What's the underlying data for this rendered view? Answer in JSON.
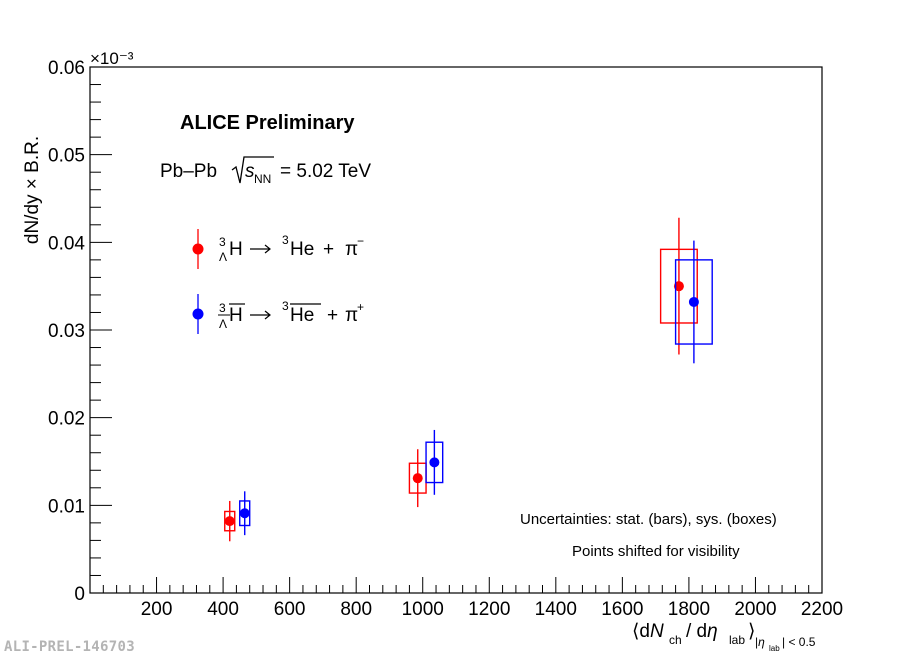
{
  "chart_data": {
    "type": "scatter",
    "title": "ALICE Preliminary",
    "subtitle": {
      "system": "Pb–Pb",
      "sqrt_label": "s",
      "sqrt_subscript": "NN",
      "energy": "= 5.02 TeV"
    },
    "xlabel": "⟨dN_ch / dη_lab⟩_|η_lab| < 0.5",
    "ylabel": "dN/dy × B.R.",
    "y_multiplier": "×10⁻³",
    "xlim": [
      0,
      2200
    ],
    "ylim": [
      0,
      0.06
    ],
    "x_ticks": [
      200,
      400,
      600,
      800,
      1000,
      1200,
      1400,
      1600,
      1800,
      2000,
      2200
    ],
    "y_ticks": [
      0,
      0.01,
      0.02,
      0.03,
      0.04,
      0.05,
      0.06
    ],
    "y_tick_labels": [
      "0",
      "0.01",
      "0.02",
      "0.03",
      "0.04",
      "0.05",
      "0.06"
    ],
    "grid": false,
    "legend_position": "upper-left",
    "series": [
      {
        "name": "³ΛH → ³He + π⁻",
        "color": "#ff0000",
        "points": [
          {
            "x": 420,
            "y": 0.0082,
            "stat": 0.0023,
            "sys": 0.0011,
            "box_halfwidth": 15
          },
          {
            "x": 985,
            "y": 0.0131,
            "stat": 0.0033,
            "sys": 0.0017,
            "box_halfwidth": 25
          },
          {
            "x": 1770,
            "y": 0.035,
            "stat": 0.0078,
            "sys": 0.0042,
            "box_halfwidth": 55
          }
        ]
      },
      {
        "name": "³Λ̄H̄ → ³H̄ē + π⁺",
        "color": "#0000ff",
        "points": [
          {
            "x": 465,
            "y": 0.0091,
            "stat": 0.0025,
            "sys": 0.0014,
            "box_halfwidth": 15
          },
          {
            "x": 1035,
            "y": 0.0149,
            "stat": 0.0037,
            "sys": 0.0023,
            "box_halfwidth": 25
          },
          {
            "x": 1815,
            "y": 0.0332,
            "stat": 0.007,
            "sys": 0.0048,
            "box_halfwidth": 55
          }
        ]
      }
    ],
    "legend": [
      {
        "reaction_left": "H",
        "reaction_right": "He",
        "pion": "π",
        "pion_charge": "−",
        "sup": "3",
        "sub": "Λ",
        "bar": false
      },
      {
        "reaction_left": "H",
        "reaction_right": "He",
        "pion": "π",
        "pion_charge": "+",
        "sup": "3",
        "sub": "Λ",
        "bar": true
      }
    ],
    "annotations": [
      "Uncertainties: stat. (bars), sys. (boxes)",
      "Points shifted for visibility"
    ]
  },
  "watermark": "ALI-PREL-146703"
}
